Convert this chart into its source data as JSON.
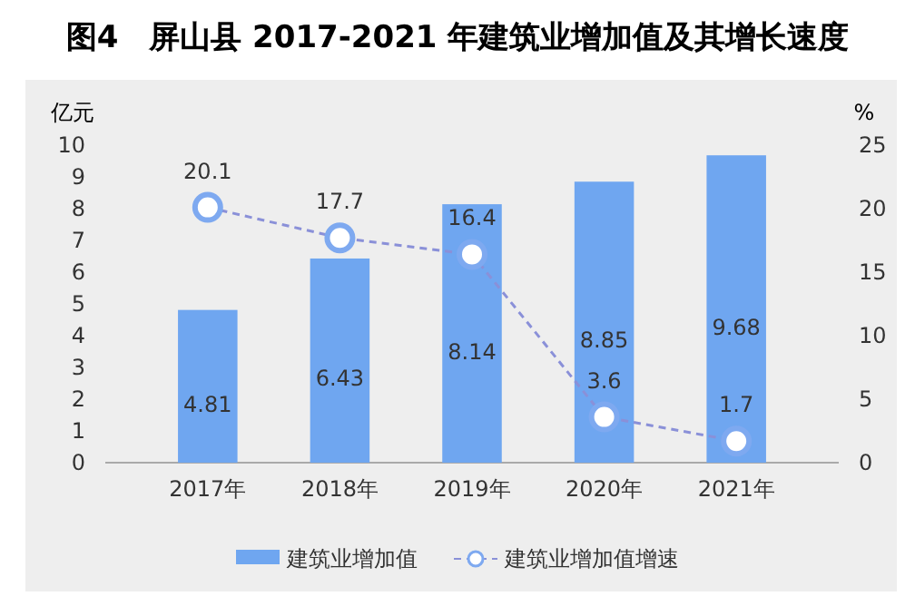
{
  "chart_data": {
    "type": "bar",
    "title": "图4　屏山县 2017-2021 年建筑业增加值及其增长速度",
    "ylabel": "亿元",
    "y2label": "%",
    "categories": [
      "2017年",
      "2018年",
      "2019年",
      "2020年",
      "2021年"
    ],
    "series": [
      {
        "name": "建筑业增加值",
        "color": "#6fa6f0",
        "values": [
          4.81,
          6.43,
          8.14,
          8.85,
          9.68
        ]
      },
      {
        "name": "建筑业增加值增速",
        "type": "line",
        "axis": "y2",
        "color": "#8a90d8",
        "line_style": "dashed",
        "marker": "circle",
        "values": [
          20.1,
          17.7,
          16.4,
          3.6,
          1.7
        ]
      }
    ],
    "ylim": [
      0,
      10
    ],
    "yticks": [
      0,
      1,
      2,
      3,
      4,
      5,
      6,
      7,
      8,
      9,
      10
    ],
    "y2lim": [
      0,
      25
    ],
    "y2ticks": [
      0,
      5,
      10,
      15,
      20,
      25
    ],
    "data_labels": true,
    "legend": "bottom",
    "grid": false
  }
}
